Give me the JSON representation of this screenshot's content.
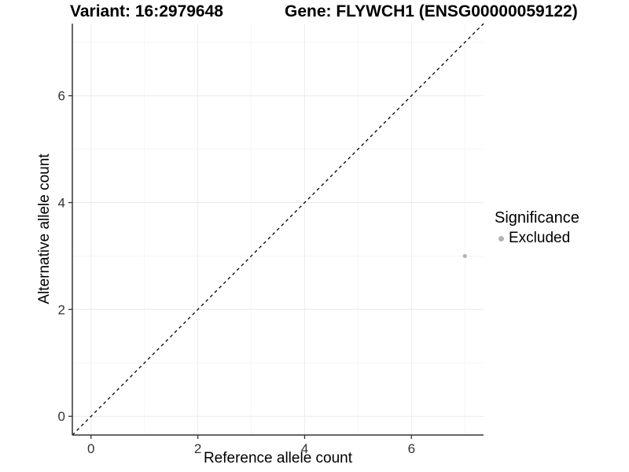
{
  "titles": {
    "variant": "Variant: 16:2979648",
    "gene": "Gene: FLYWCH1 (ENSG00000059122)"
  },
  "chart_data": {
    "type": "scatter",
    "title_left": "Variant: 16:2979648",
    "title_right": "Gene: FLYWCH1 (ENSG00000059122)",
    "xlabel": "Reference allele count",
    "ylabel": "Alternative allele count",
    "xlim": [
      -0.35,
      7.35
    ],
    "ylim": [
      -0.35,
      7.35
    ],
    "x_ticks": [
      0,
      2,
      4,
      6
    ],
    "y_ticks": [
      0,
      2,
      4,
      6
    ],
    "x_minor_gridlines": [
      1,
      3,
      5,
      7
    ],
    "y_minor_gridlines": [
      1,
      3,
      5,
      7
    ],
    "grid": "on",
    "series": [
      {
        "name": "Excluded",
        "color": "#b3b3b3",
        "points": [
          {
            "x": 7,
            "y": 3
          }
        ]
      }
    ],
    "reference_line": {
      "type": "identity",
      "style": "dashed",
      "from": [
        -0.35,
        -0.35
      ],
      "to": [
        7.35,
        7.35
      ],
      "color": "#000000"
    },
    "legend": {
      "title": "Significance",
      "position": "right",
      "items": [
        {
          "label": "Excluded",
          "color": "#b3b3b3",
          "marker": "dot"
        }
      ]
    }
  },
  "colors": {
    "background": "#ffffff",
    "grid_major": "#ececec",
    "grid_minor": "#f6f6f6",
    "axis_line": "#333333",
    "tick_label": "#333333",
    "point": "#b3b3b3",
    "dashed_line": "#000000"
  }
}
